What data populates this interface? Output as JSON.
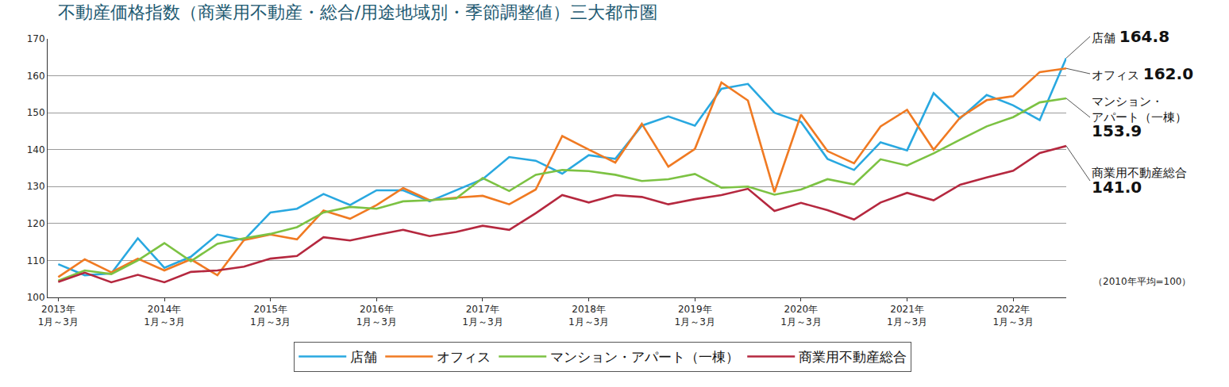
{
  "chart_data": {
    "type": "line",
    "title": "不動産価格指数（商業用不動産・総合/用途地域別・季節調整値）三大都市圏",
    "categories": [
      "2013年\n1月～3月",
      null,
      null,
      null,
      "2014年\n1月～3月",
      null,
      null,
      null,
      "2015年\n1月～3月",
      null,
      null,
      null,
      "2016年\n1月～3月",
      null,
      null,
      null,
      "2017年\n1月～3月",
      null,
      null,
      null,
      "2018年\n1月～3月",
      null,
      null,
      null,
      "2019年\n1月～3月",
      null,
      null,
      null,
      "2020年\n1月～3月",
      null,
      null,
      null,
      "2021年\n1月～3月",
      null,
      null,
      null,
      "2022年\n1月～3月",
      null,
      null
    ],
    "series": [
      {
        "name": "店舗",
        "color": "#29a8e0",
        "values": [
          109,
          106,
          106.5,
          116,
          108,
          111,
          117,
          115.5,
          123,
          124,
          128,
          125,
          129,
          129,
          126,
          129,
          132,
          138,
          137,
          133.5,
          138.5,
          137.5,
          146.5,
          149,
          146.5,
          156.5,
          157.8,
          150,
          147.5,
          137.5,
          134.5,
          142,
          139.8,
          155.3,
          148.5,
          154.8,
          152,
          148,
          164.8
        ]
      },
      {
        "name": "オフィス",
        "color": "#f07a22",
        "values": [
          105.5,
          110.3,
          106.8,
          110.5,
          107.3,
          110.3,
          106,
          115.5,
          117,
          115.7,
          123.5,
          121.3,
          125,
          129.6,
          126.3,
          127,
          127.5,
          125.2,
          129.2,
          143.7,
          140,
          136.5,
          147,
          135.4,
          140.2,
          158.2,
          153.3,
          128.5,
          149.5,
          139.6,
          136.3,
          146.3,
          150.8,
          140,
          148.7,
          153.4,
          154.5,
          161,
          162.0
        ]
      },
      {
        "name": "マンション・アパート（一棟）",
        "color": "#7cc243",
        "values": [
          104.5,
          107.3,
          106.3,
          110,
          114.7,
          109.8,
          114.5,
          116,
          117.2,
          119,
          123,
          124.5,
          124,
          126,
          126.3,
          126.8,
          132.3,
          128.8,
          133.2,
          134.5,
          134.2,
          133.2,
          131.5,
          132,
          133.4,
          129.7,
          130,
          127.8,
          129.2,
          132,
          130.6,
          137.4,
          135.7,
          139,
          142.7,
          146.3,
          148.8,
          152.8,
          153.9
        ]
      },
      {
        "name": "商業用不動産総合",
        "color": "#b5283f",
        "values": [
          104.2,
          106.7,
          104.1,
          106.1,
          104.1,
          106.9,
          107.3,
          108.3,
          110.5,
          111.2,
          116.3,
          115.4,
          116.9,
          118.3,
          116.6,
          117.7,
          119.4,
          118.3,
          122.8,
          127.7,
          125.7,
          127.7,
          127.2,
          125.2,
          126.6,
          127.7,
          129.4,
          123.4,
          125.6,
          123.6,
          121.1,
          125.7,
          128.3,
          126.3,
          130.5,
          132.5,
          134.3,
          139.1,
          141.0
        ]
      }
    ],
    "annotations": [
      {
        "label": "店舗",
        "value_label": "164.8"
      },
      {
        "label": "オフィス",
        "value_label": "162.0"
      },
      {
        "label": "マンション・\nアパート（一棟）",
        "value_label": "153.9"
      },
      {
        "label": "商業用不動産総合",
        "value_label": "141.0"
      }
    ],
    "note": "（2010年平均=100）",
    "ylim": [
      100,
      170
    ],
    "yticks": [
      100,
      110,
      120,
      130,
      140,
      150,
      160,
      170
    ],
    "grid": true,
    "legend": "bottom"
  }
}
